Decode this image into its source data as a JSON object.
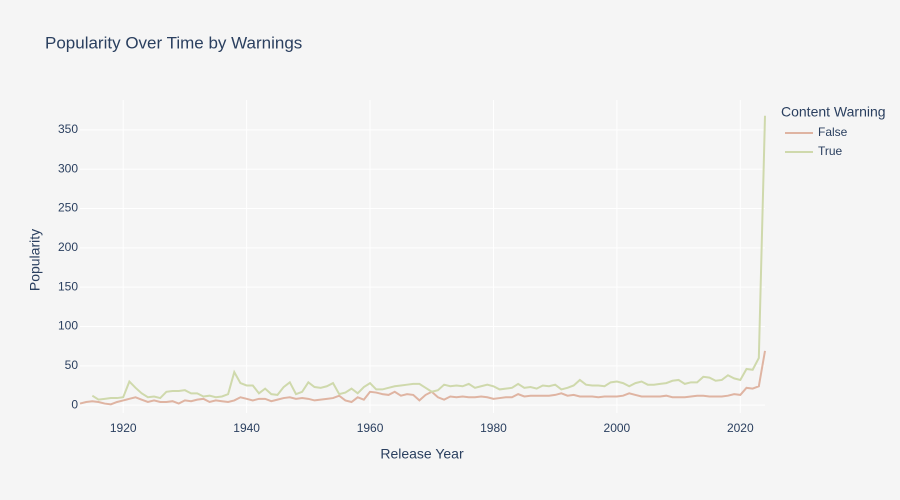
{
  "chart_data": {
    "type": "line",
    "title": "Popularity Over Time by Warnings",
    "x_label": "Release Year",
    "y_label": "Popularity",
    "legend_title": "Content Warning",
    "xlim": [
      1913,
      2024
    ],
    "ylim": [
      -10,
      388
    ],
    "xticks": [
      1920,
      1940,
      1960,
      1980,
      2000,
      2020
    ],
    "yticks": [
      0,
      50,
      100,
      150,
      200,
      250,
      300,
      350
    ],
    "grid": true,
    "legend_position": "right",
    "series": [
      {
        "name": "False",
        "color": "#dfb4a2",
        "x": [
          1913,
          1914,
          1915,
          1916,
          1917,
          1918,
          1919,
          1920,
          1921,
          1922,
          1923,
          1924,
          1925,
          1926,
          1927,
          1928,
          1929,
          1930,
          1931,
          1932,
          1933,
          1934,
          1935,
          1936,
          1937,
          1938,
          1939,
          1940,
          1941,
          1942,
          1943,
          1944,
          1945,
          1946,
          1947,
          1948,
          1949,
          1950,
          1951,
          1952,
          1953,
          1954,
          1955,
          1956,
          1957,
          1958,
          1959,
          1960,
          1961,
          1962,
          1963,
          1964,
          1965,
          1966,
          1967,
          1968,
          1969,
          1970,
          1971,
          1972,
          1973,
          1974,
          1975,
          1976,
          1977,
          1978,
          1979,
          1980,
          1981,
          1982,
          1983,
          1984,
          1985,
          1986,
          1987,
          1988,
          1989,
          1990,
          1991,
          1992,
          1993,
          1994,
          1995,
          1996,
          1997,
          1998,
          1999,
          2000,
          2001,
          2002,
          2003,
          2004,
          2005,
          2006,
          2007,
          2008,
          2009,
          2010,
          2011,
          2012,
          2013,
          2014,
          2015,
          2016,
          2017,
          2018,
          2019,
          2020,
          2021,
          2022,
          2023,
          2024
        ],
        "values": [
          2,
          4,
          5,
          4,
          2,
          1,
          4,
          6,
          8,
          10,
          7,
          4,
          6,
          4,
          4,
          5,
          2,
          6,
          5,
          7,
          8,
          4,
          6,
          5,
          4,
          6,
          10,
          8,
          6,
          8,
          8,
          5,
          7,
          9,
          10,
          8,
          9,
          8,
          6,
          7,
          8,
          9,
          12,
          6,
          4,
          10,
          7,
          17,
          16,
          14,
          13,
          17,
          12,
          14,
          13,
          6,
          13,
          17,
          10,
          7,
          11,
          10,
          11,
          10,
          10,
          11,
          10,
          8,
          9,
          10,
          10,
          14,
          11,
          12,
          12,
          12,
          12,
          13,
          15,
          12,
          13,
          11,
          11,
          11,
          10,
          11,
          11,
          11,
          12,
          15,
          13,
          11,
          11,
          11,
          11,
          12,
          10,
          10,
          10,
          11,
          12,
          12,
          11,
          11,
          11,
          12,
          14,
          13,
          22,
          21,
          24,
          69
        ]
      },
      {
        "name": "True",
        "color": "#cfd9ac",
        "x": [
          1915,
          1916,
          1917,
          1918,
          1919,
          1920,
          1921,
          1922,
          1923,
          1924,
          1925,
          1926,
          1927,
          1928,
          1929,
          1930,
          1931,
          1932,
          1933,
          1934,
          1935,
          1936,
          1937,
          1938,
          1939,
          1940,
          1941,
          1942,
          1943,
          1944,
          1945,
          1946,
          1947,
          1948,
          1949,
          1950,
          1951,
          1952,
          1953,
          1954,
          1955,
          1956,
          1957,
          1958,
          1959,
          1960,
          1961,
          1962,
          1963,
          1964,
          1965,
          1966,
          1967,
          1968,
          1969,
          1970,
          1971,
          1972,
          1973,
          1974,
          1975,
          1976,
          1977,
          1978,
          1979,
          1980,
          1981,
          1982,
          1983,
          1984,
          1985,
          1986,
          1987,
          1988,
          1989,
          1990,
          1991,
          1992,
          1993,
          1994,
          1995,
          1996,
          1997,
          1998,
          1999,
          2000,
          2001,
          2002,
          2003,
          2004,
          2005,
          2006,
          2007,
          2008,
          2009,
          2010,
          2011,
          2012,
          2013,
          2014,
          2015,
          2016,
          2017,
          2018,
          2019,
          2020,
          2021,
          2022,
          2023,
          2024
        ],
        "values": [
          12,
          7,
          8,
          9,
          9,
          10,
          30,
          22,
          15,
          10,
          11,
          9,
          17,
          18,
          18,
          19,
          15,
          15,
          11,
          12,
          10,
          11,
          14,
          42,
          28,
          25,
          25,
          15,
          21,
          14,
          13,
          23,
          29,
          14,
          17,
          29,
          23,
          22,
          24,
          28,
          14,
          16,
          21,
          15,
          23,
          28,
          20,
          20,
          22,
          24,
          25,
          26,
          27,
          27,
          22,
          17,
          19,
          26,
          24,
          25,
          24,
          27,
          22,
          24,
          26,
          24,
          20,
          21,
          22,
          27,
          22,
          23,
          21,
          25,
          24,
          26,
          20,
          22,
          25,
          32,
          26,
          25,
          25,
          24,
          29,
          30,
          28,
          24,
          28,
          30,
          26,
          26,
          27,
          28,
          31,
          32,
          27,
          29,
          29,
          36,
          35,
          31,
          32,
          38,
          34,
          32,
          46,
          45,
          60,
          368
        ]
      }
    ]
  }
}
